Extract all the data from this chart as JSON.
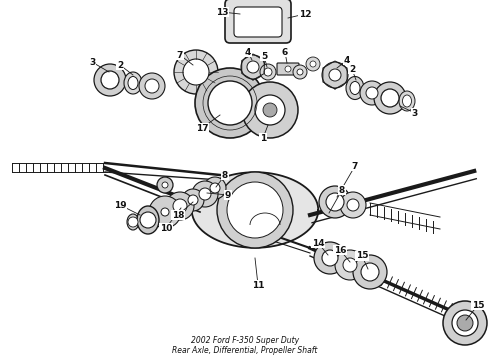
{
  "bg_color": "#ffffff",
  "lc": "#1a1a1a",
  "fs": 6.5,
  "fw": "bold",
  "figsize": [
    4.9,
    3.6
  ],
  "dpi": 100
}
